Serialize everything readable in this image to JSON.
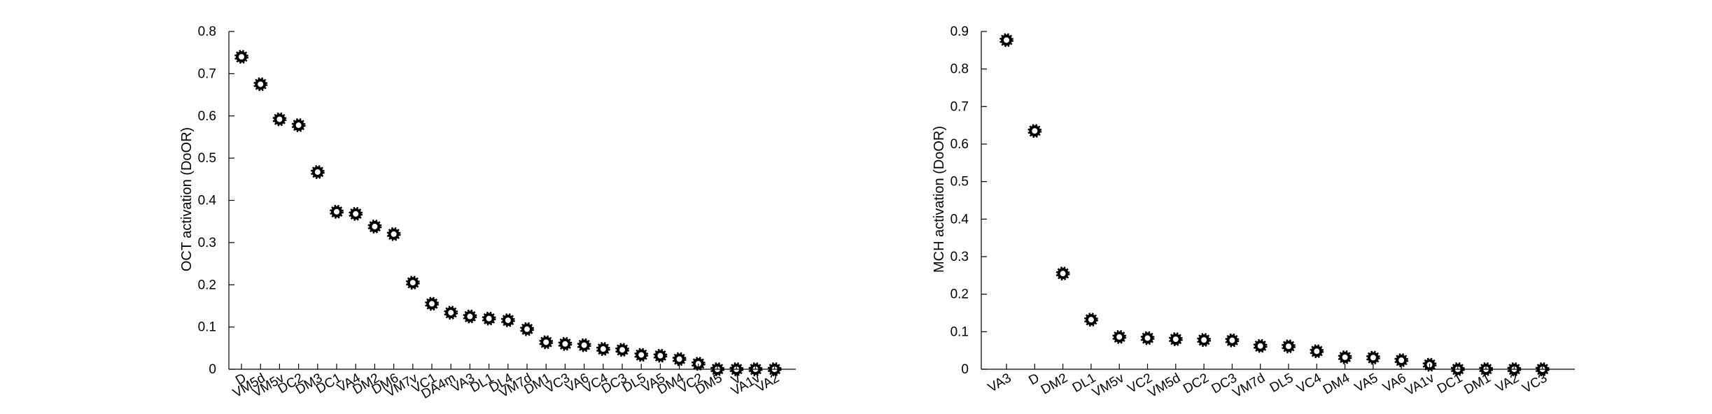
{
  "chart_data": [
    {
      "type": "scatter",
      "ylabel": "OCT activation (DoOR)",
      "ylim": [
        0,
        0.8
      ],
      "yticks": [
        0,
        0.1,
        0.2,
        0.3,
        0.4,
        0.5,
        0.6,
        0.7,
        0.8
      ],
      "ytick_labels": [
        "0",
        "0.1",
        "0.2",
        "0.3",
        "0.4",
        "0.5",
        "0.6",
        "0.7",
        "0.8"
      ],
      "categories": [
        "D",
        "VM5d",
        "VM5v",
        "DC2",
        "DM3",
        "DC1",
        "VA4",
        "DM2",
        "DM6",
        "VM7v",
        "VC1",
        "DA4m",
        "VA3",
        "DL1",
        "DL4",
        "VM7d",
        "DM1",
        "VC3",
        "VA6",
        "VC4",
        "DC3",
        "DL5",
        "VA5",
        "DM4",
        "VC2",
        "DM5",
        "V",
        "VA1v",
        "VA2"
      ],
      "values": [
        0.74,
        0.675,
        0.592,
        0.578,
        0.467,
        0.373,
        0.368,
        0.338,
        0.32,
        0.205,
        0.155,
        0.134,
        0.125,
        0.12,
        0.116,
        0.095,
        0.064,
        0.06,
        0.057,
        0.048,
        0.046,
        0.034,
        0.032,
        0.024,
        0.013,
        0.0,
        0.0,
        0.0,
        0.0
      ],
      "grid": false
    },
    {
      "type": "scatter",
      "ylabel": "MCH activation (DoOR)",
      "ylim": [
        0,
        0.9
      ],
      "yticks": [
        0,
        0.1,
        0.2,
        0.3,
        0.4,
        0.5,
        0.6,
        0.7,
        0.8,
        0.9
      ],
      "ytick_labels": [
        "0",
        "0.1",
        "0.2",
        "0.3",
        "0.4",
        "0.5",
        "0.6",
        "0.7",
        "0.8",
        "0.9"
      ],
      "categories": [
        "VA3",
        "D",
        "DM2",
        "DL1",
        "VM5v",
        "VC2",
        "VM5d",
        "DC2",
        "DC3",
        "VM7d",
        "DL5",
        "VC4",
        "DM4",
        "VA5",
        "VA6",
        "VA1v",
        "DC1",
        "DM1",
        "VA2",
        "VC3"
      ],
      "values": [
        0.877,
        0.635,
        0.255,
        0.132,
        0.086,
        0.083,
        0.08,
        0.078,
        0.077,
        0.062,
        0.061,
        0.048,
        0.032,
        0.031,
        0.024,
        0.012,
        0.0,
        0.0,
        0.0,
        0.0
      ],
      "grid": false
    }
  ]
}
